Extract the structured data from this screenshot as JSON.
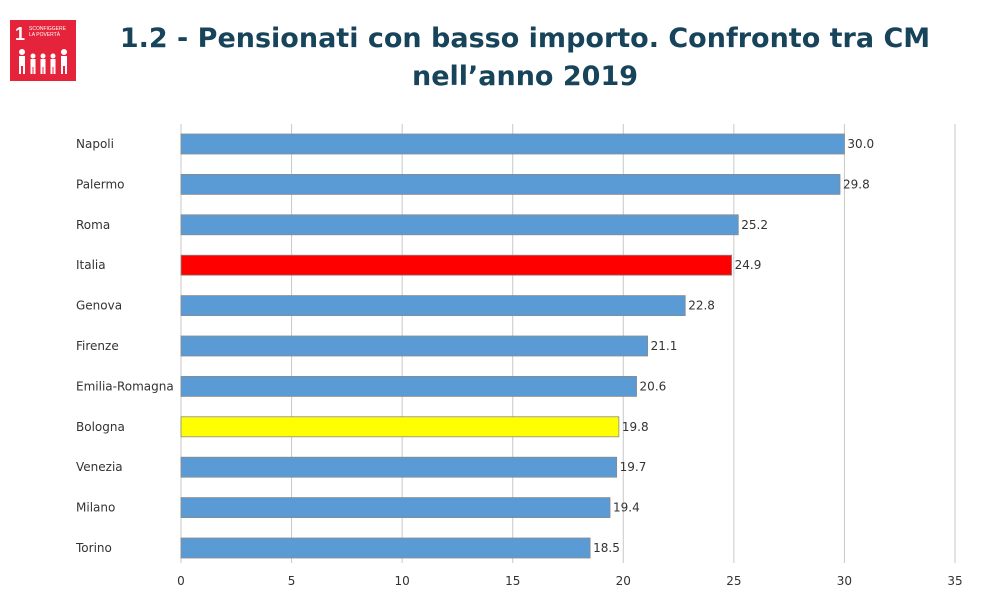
{
  "title_line1": "1.2 - Pensionati con basso importo. Confronto tra CM",
  "title_line2": "nell’anno 2019",
  "logo": {
    "icon": "sdg-goal-1-no-poverty-icon",
    "number": "1",
    "text_line1": "SCONFIGGERE",
    "text_line2": "LA POVERTÀ",
    "color": "#e5243b"
  },
  "chart_data": {
    "type": "bar",
    "orientation": "horizontal",
    "categories": [
      "Napoli",
      "Palermo",
      "Roma",
      "Italia",
      "Genova",
      "Firenze",
      "Emilia-Romagna",
      "Bologna",
      "Venezia",
      "Milano",
      "Torino"
    ],
    "values": [
      30.0,
      29.8,
      25.2,
      24.9,
      22.8,
      21.1,
      20.6,
      19.8,
      19.7,
      19.4,
      18.5
    ],
    "data_labels": [
      "30.0",
      "29.8",
      "25.2",
      "24.9",
      "22.8",
      "21.1",
      "20.6",
      "19.8",
      "19.7",
      "19.4",
      "18.5"
    ],
    "bar_colors": [
      "#5b9bd5",
      "#5b9bd5",
      "#5b9bd5",
      "#ff0000",
      "#5b9bd5",
      "#5b9bd5",
      "#5b9bd5",
      "#ffff00",
      "#5b9bd5",
      "#5b9bd5",
      "#5b9bd5"
    ],
    "xlim": [
      0,
      35
    ],
    "xticks": [
      0,
      5,
      10,
      15,
      20,
      25,
      30,
      35
    ],
    "title": "",
    "xlabel": "",
    "ylabel": "",
    "grid": "vertical",
    "legend": "none"
  }
}
